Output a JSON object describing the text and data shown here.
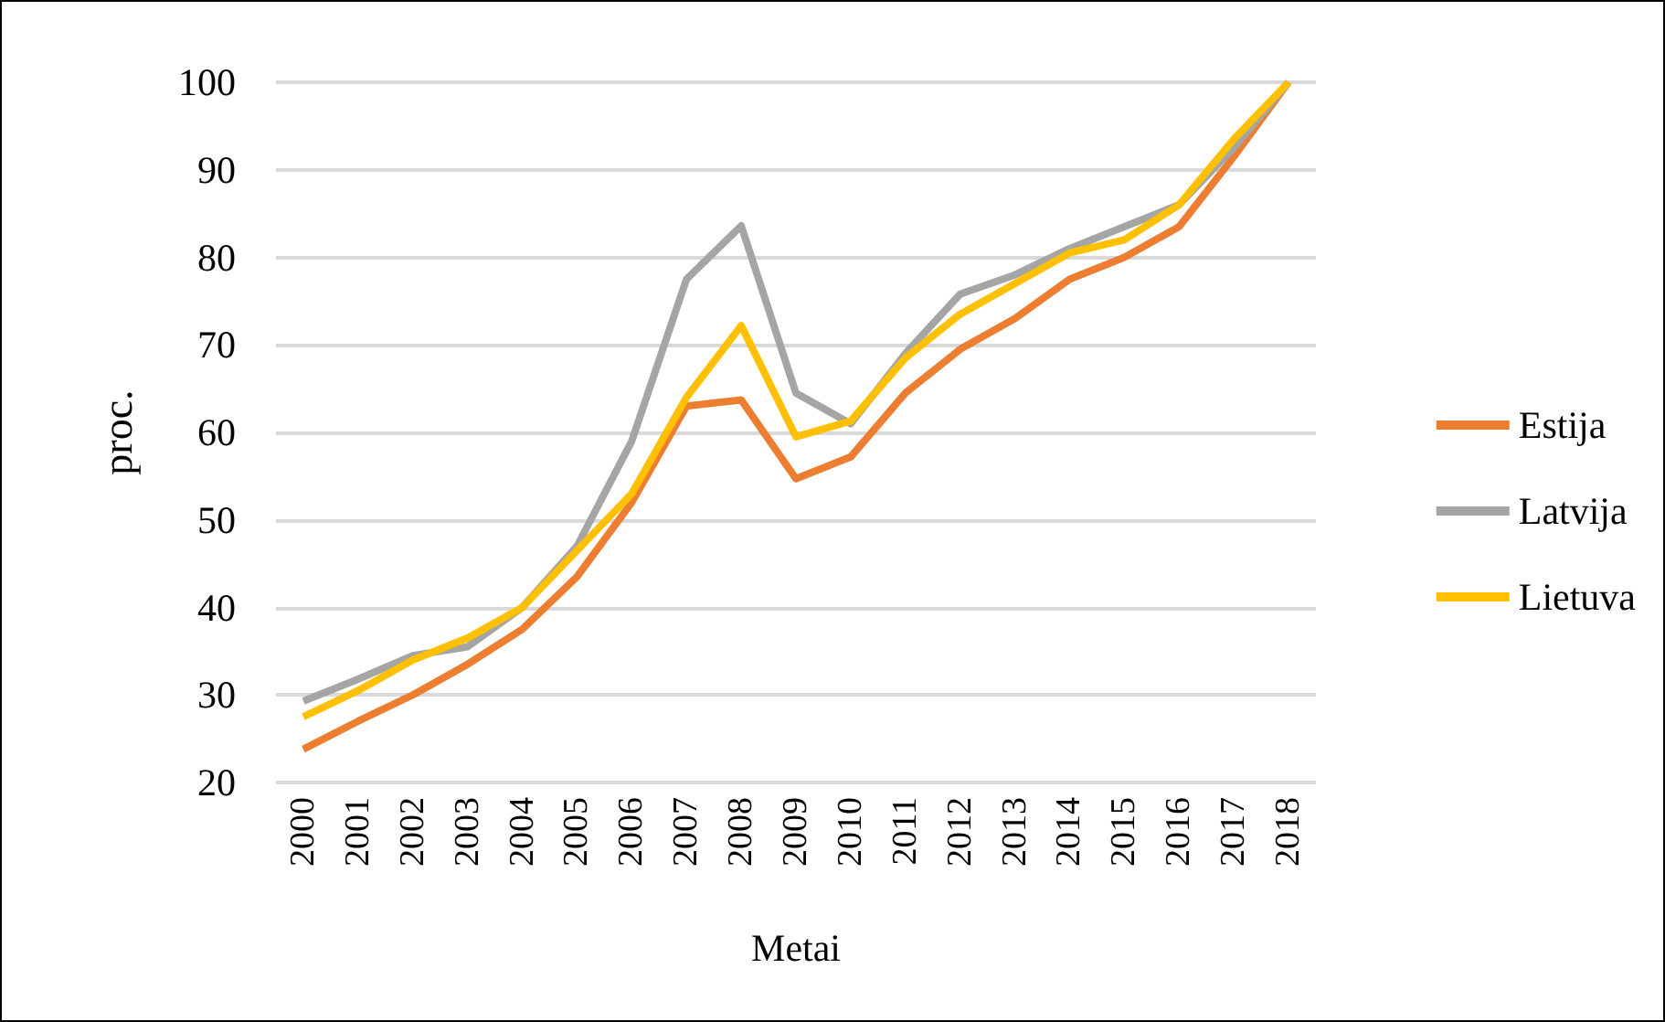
{
  "chart_data": {
    "type": "line",
    "xlabel": "Metai",
    "ylabel": "proc.",
    "categories": [
      "2000",
      "2001",
      "2002",
      "2003",
      "2004",
      "2005",
      "2006",
      "2007",
      "2008",
      "2009",
      "2010",
      "2011",
      "2012",
      "2013",
      "2014",
      "2015",
      "2016",
      "2017",
      "2018"
    ],
    "series": [
      {
        "name": "Estija",
        "color": "#ed7d31",
        "values": [
          23.8,
          27,
          30,
          33.5,
          37.5,
          43.5,
          52,
          63,
          63.7,
          54.7,
          57.2,
          64.5,
          69.5,
          73,
          77.5,
          80,
          83.5,
          91.5,
          100
        ]
      },
      {
        "name": "Latvija",
        "color": "#a5a5a5",
        "values": [
          29.3,
          31.8,
          34.5,
          35.5,
          40,
          47,
          59,
          77.5,
          83.6,
          64.5,
          61,
          69,
          75.8,
          78,
          81,
          83.5,
          86,
          92.5,
          100
        ]
      },
      {
        "name": "Lietuva",
        "color": "#ffc000",
        "values": [
          27.5,
          30.5,
          34,
          36.5,
          40,
          46.5,
          53,
          64,
          72.2,
          59.5,
          61.3,
          68.5,
          73.5,
          77,
          80.5,
          82,
          86,
          93.5,
          100
        ]
      }
    ],
    "ylim": [
      20,
      100
    ],
    "yticks": [
      20,
      30,
      40,
      50,
      60,
      70,
      80,
      90,
      100
    ],
    "grid": "y",
    "legend": "right",
    "marker": "none",
    "line_style": "solid"
  }
}
